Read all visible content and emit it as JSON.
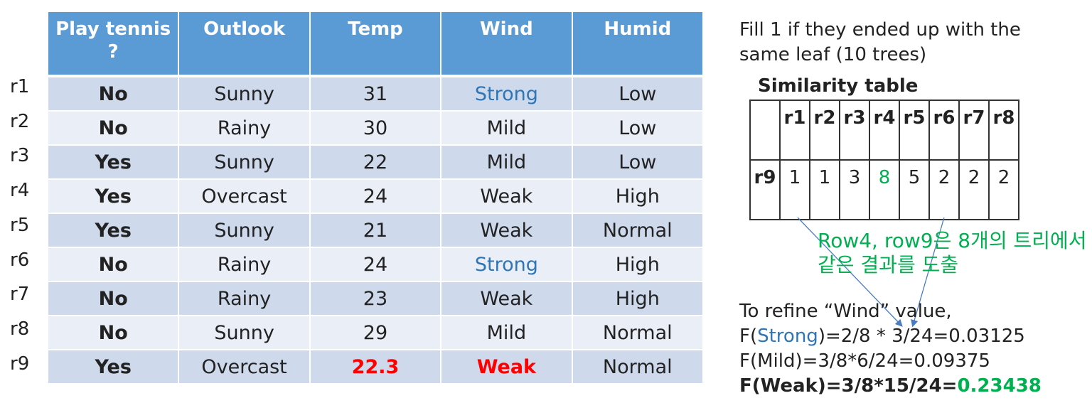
{
  "main_table": {
    "header": [
      "Play tennis ?",
      "Outlook",
      "Temp",
      "Wind",
      "Humid"
    ],
    "rows": [
      {
        "label": "r1",
        "cells": [
          "No",
          "Sunny",
          "31",
          "Strong",
          "Low"
        ]
      },
      {
        "label": "r2",
        "cells": [
          "No",
          "Rainy",
          "30",
          "Mild",
          "Low"
        ]
      },
      {
        "label": "r3",
        "cells": [
          "Yes",
          "Sunny",
          "22",
          "Mild",
          "Low"
        ]
      },
      {
        "label": "r4",
        "cells": [
          "Yes",
          "Overcast",
          "24",
          "Weak",
          "High"
        ]
      },
      {
        "label": "r5",
        "cells": [
          "Yes",
          "Sunny",
          "21",
          "Weak",
          "Normal"
        ]
      },
      {
        "label": "r6",
        "cells": [
          "No",
          "Rainy",
          "24",
          "Strong",
          "High"
        ]
      },
      {
        "label": "r7",
        "cells": [
          "No",
          "Rainy",
          "23",
          "Weak",
          "High"
        ]
      },
      {
        "label": "r8",
        "cells": [
          "No",
          "Sunny",
          "29",
          "Mild",
          "Normal"
        ]
      },
      {
        "label": "r9",
        "cells": [
          "Yes",
          "Overcast",
          "22.3",
          "Weak",
          "Normal"
        ]
      }
    ]
  },
  "note": "Fill 1 if they ended up with the same leaf (10 trees)",
  "similarity_table": {
    "title": "Similarity table",
    "header": [
      "r1",
      "r2",
      "r3",
      "r4",
      "r5",
      "r6",
      "r7",
      "r8"
    ],
    "row_label": "r9",
    "values": [
      "1",
      "1",
      "3",
      "8",
      "5",
      "2",
      "2",
      "2"
    ]
  },
  "annotation": "Row4, row9은 8개의 트리에서 같은 결과를 도출",
  "formula_intro": "To refine “Wind” value,",
  "formulas": [
    [
      "F(",
      "Strong",
      ")=2/8 * 3/24=0.03125"
    ],
    [
      "F(Mild)=3/8*6/24=0.09375"
    ],
    [
      "F(Weak)=3/8*15/24=",
      "0.23438"
    ]
  ]
}
